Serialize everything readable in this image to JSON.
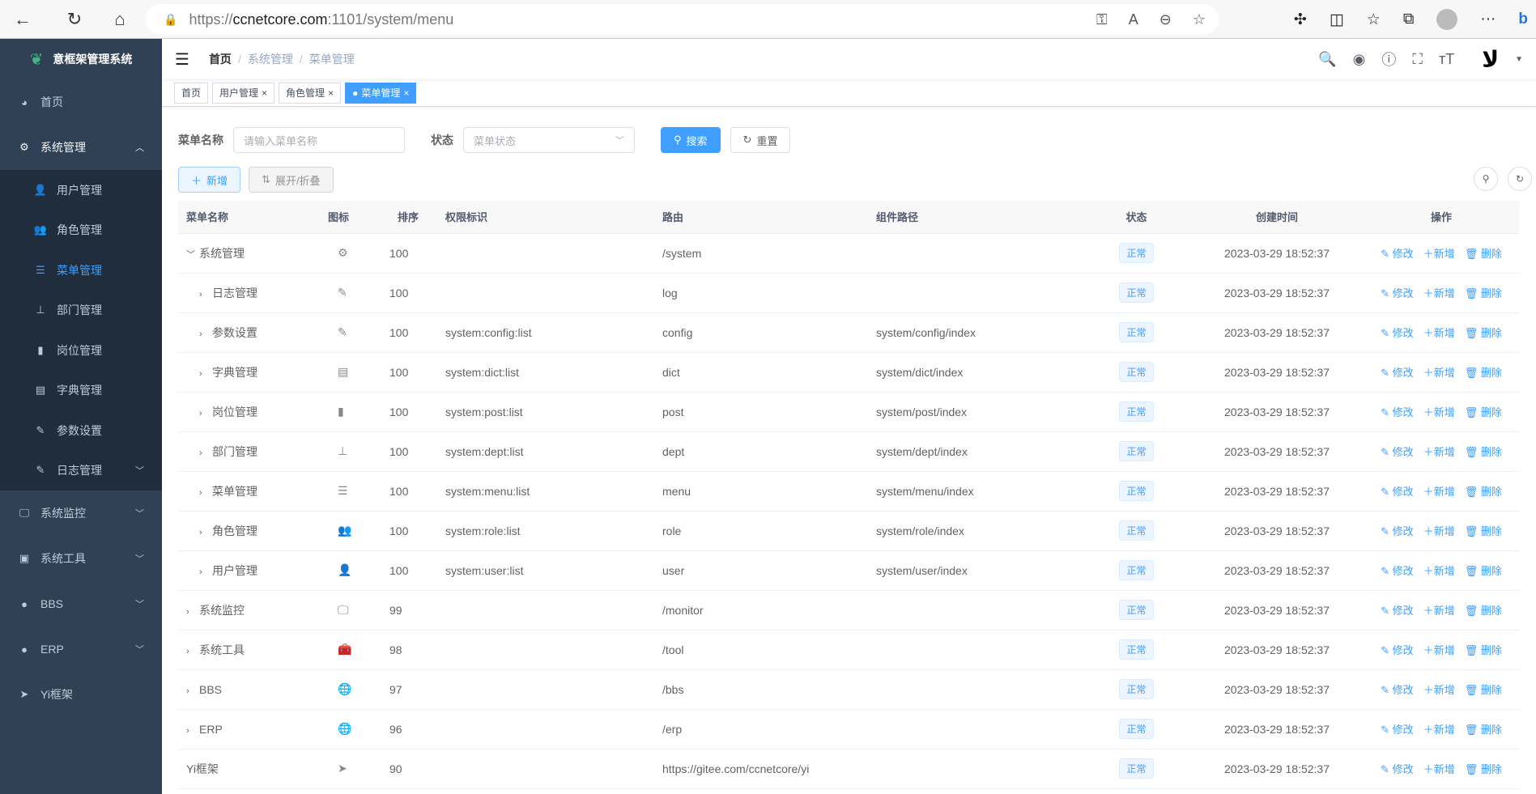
{
  "browser": {
    "url_prefix": "https://",
    "url_host": "ccnetcore.com",
    "url_rest": ":1101/system/menu"
  },
  "app": {
    "title": "意框架管理系统"
  },
  "sidebar": {
    "items": [
      {
        "label": "首页",
        "icon": "dashboard-icon"
      },
      {
        "label": "系统管理",
        "icon": "gear-icon",
        "expanded": true,
        "children": [
          {
            "label": "用户管理",
            "icon": "user-icon"
          },
          {
            "label": "角色管理",
            "icon": "peoples-icon"
          },
          {
            "label": "菜单管理",
            "icon": "tree-table-icon",
            "active": true
          },
          {
            "label": "部门管理",
            "icon": "tree-icon"
          },
          {
            "label": "岗位管理",
            "icon": "post-icon"
          },
          {
            "label": "字典管理",
            "icon": "dict-icon"
          },
          {
            "label": "参数设置",
            "icon": "edit-icon"
          },
          {
            "label": "日志管理",
            "icon": "log-icon"
          }
        ]
      },
      {
        "label": "系统监控",
        "icon": "monitor-icon"
      },
      {
        "label": "系统工具",
        "icon": "tool-icon"
      },
      {
        "label": "BBS",
        "icon": "globe-icon"
      },
      {
        "label": "ERP",
        "icon": "globe-icon"
      },
      {
        "label": "Yi框架",
        "icon": "send-icon"
      }
    ]
  },
  "breadcrumb": [
    "首页",
    "系统管理",
    "菜单管理"
  ],
  "tags": [
    {
      "label": "首页"
    },
    {
      "label": "用户管理"
    },
    {
      "label": "角色管理"
    },
    {
      "label": "菜单管理",
      "active": true
    }
  ],
  "search": {
    "name_label": "菜单名称",
    "name_placeholder": "请输入菜单名称",
    "status_label": "状态",
    "status_placeholder": "菜单状态",
    "search_btn": "搜索",
    "reset_btn": "重置"
  },
  "toolbar": {
    "add": "新增",
    "toggle": "展开/折叠"
  },
  "table": {
    "headers": [
      "菜单名称",
      "图标",
      "排序",
      "权限标识",
      "路由",
      "组件路径",
      "状态",
      "创建时间",
      "操作"
    ],
    "actions": {
      "edit": "修改",
      "add": "新增",
      "delete": "删除"
    },
    "rows": [
      {
        "name": "系统管理",
        "level": 0,
        "expander": "down",
        "icon": "⚙",
        "sort": "100",
        "perm": "",
        "route": "/system",
        "component": "",
        "status": "正常",
        "time": "2023-03-29 18:52:37"
      },
      {
        "name": "日志管理",
        "level": 1,
        "expander": "right",
        "icon": "✎",
        "sort": "100",
        "perm": "",
        "route": "log",
        "component": "",
        "status": "正常",
        "time": "2023-03-29 18:52:37"
      },
      {
        "name": "参数设置",
        "level": 1,
        "expander": "right",
        "icon": "✎",
        "sort": "100",
        "perm": "system:config:list",
        "route": "config",
        "component": "system/config/index",
        "status": "正常",
        "time": "2023-03-29 18:52:37"
      },
      {
        "name": "字典管理",
        "level": 1,
        "expander": "right",
        "icon": "▤",
        "sort": "100",
        "perm": "system:dict:list",
        "route": "dict",
        "component": "system/dict/index",
        "status": "正常",
        "time": "2023-03-29 18:52:37"
      },
      {
        "name": "岗位管理",
        "level": 1,
        "expander": "right",
        "icon": "▮",
        "sort": "100",
        "perm": "system:post:list",
        "route": "post",
        "component": "system/post/index",
        "status": "正常",
        "time": "2023-03-29 18:52:37"
      },
      {
        "name": "部门管理",
        "level": 1,
        "expander": "right",
        "icon": "⊥",
        "sort": "100",
        "perm": "system:dept:list",
        "route": "dept",
        "component": "system/dept/index",
        "status": "正常",
        "time": "2023-03-29 18:52:37"
      },
      {
        "name": "菜单管理",
        "level": 1,
        "expander": "right",
        "icon": "☰",
        "sort": "100",
        "perm": "system:menu:list",
        "route": "menu",
        "component": "system/menu/index",
        "status": "正常",
        "time": "2023-03-29 18:52:37"
      },
      {
        "name": "角色管理",
        "level": 1,
        "expander": "right",
        "icon": "👥",
        "sort": "100",
        "perm": "system:role:list",
        "route": "role",
        "component": "system/role/index",
        "status": "正常",
        "time": "2023-03-29 18:52:37"
      },
      {
        "name": "用户管理",
        "level": 1,
        "expander": "right",
        "icon": "👤",
        "sort": "100",
        "perm": "system:user:list",
        "route": "user",
        "component": "system/user/index",
        "status": "正常",
        "time": "2023-03-29 18:52:37"
      },
      {
        "name": "系统监控",
        "level": 0,
        "expander": "right",
        "icon": "🖵",
        "sort": "99",
        "perm": "",
        "route": "/monitor",
        "component": "",
        "status": "正常",
        "time": "2023-03-29 18:52:37"
      },
      {
        "name": "系统工具",
        "level": 0,
        "expander": "right",
        "icon": "🧰",
        "sort": "98",
        "perm": "",
        "route": "/tool",
        "component": "",
        "status": "正常",
        "time": "2023-03-29 18:52:37"
      },
      {
        "name": "BBS",
        "level": 0,
        "expander": "right",
        "icon": "🌐",
        "sort": "97",
        "perm": "",
        "route": "/bbs",
        "component": "",
        "status": "正常",
        "time": "2023-03-29 18:52:37"
      },
      {
        "name": "ERP",
        "level": 0,
        "expander": "right",
        "icon": "🌐",
        "sort": "96",
        "perm": "",
        "route": "/erp",
        "component": "",
        "status": "正常",
        "time": "2023-03-29 18:52:37"
      },
      {
        "name": "Yi框架",
        "level": 0,
        "expander": "",
        "icon": "➤",
        "sort": "90",
        "perm": "",
        "route": "https://gitee.com/ccnetcore/yi",
        "component": "",
        "status": "正常",
        "time": "2023-03-29 18:52:37"
      }
    ]
  },
  "colors": {
    "primary": "#409eff",
    "sidebar": "#304156",
    "submenu": "#1f2d3d"
  }
}
